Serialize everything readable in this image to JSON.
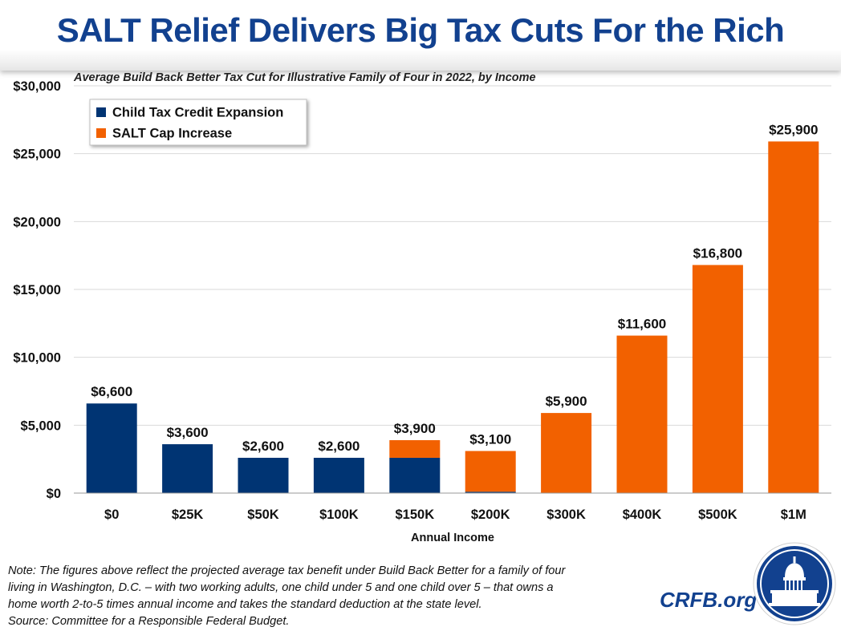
{
  "title": "SALT Relief Delivers Big Tax Cuts For the Rich",
  "subtitle": "Average Build Back Better Tax Cut for Illustrative Family of Four in 2022, by Income",
  "colors": {
    "ctc": "#003473",
    "salt": "#f26100",
    "title": "#12418f"
  },
  "chart_data": {
    "type": "bar",
    "stacked": true,
    "categories": [
      "$0",
      "$25K",
      "$50K",
      "$100K",
      "$150K",
      "$200K",
      "$300K",
      "$400K",
      "$500K",
      "$1M"
    ],
    "series": [
      {
        "name": "Child Tax Credit Expansion",
        "values": [
          6600,
          3600,
          2600,
          2600,
          2600,
          100,
          0,
          0,
          0,
          0
        ]
      },
      {
        "name": "SALT Cap Increase",
        "values": [
          0,
          0,
          0,
          0,
          1300,
          3000,
          5900,
          11600,
          16800,
          25900
        ]
      }
    ],
    "totals": [
      6600,
      3600,
      2600,
      2600,
      3900,
      3100,
      5900,
      11600,
      16800,
      25900
    ],
    "data_labels": [
      "$6,600",
      "$3,600",
      "$2,600",
      "$2,600",
      "$3,900",
      "$3,100",
      "$5,900",
      "$11,600",
      "$16,800",
      "$25,900"
    ],
    "y_ticks": [
      0,
      5000,
      10000,
      15000,
      20000,
      25000,
      30000
    ],
    "y_tick_labels": [
      "$0",
      "$5,000",
      "$10,000",
      "$15,000",
      "$20,000",
      "$25,000",
      "$30,000"
    ],
    "ylim": [
      0,
      30000
    ],
    "xlabel": "Annual Income",
    "ylabel": "",
    "grid": true,
    "legend_position": "top-left"
  },
  "note": {
    "lines": [
      "Note: The figures above reflect the projected average tax benefit under Build Back Better for a family of four",
      "living in Washington, D.C. – with two working adults, one child under 5 and one child over 5 – that owns a",
      "home worth 2-to-5 times annual income and takes the standard deduction at the state level.",
      "Source: Committee for a Responsible Federal Budget."
    ]
  },
  "brand": "CRFB.org"
}
